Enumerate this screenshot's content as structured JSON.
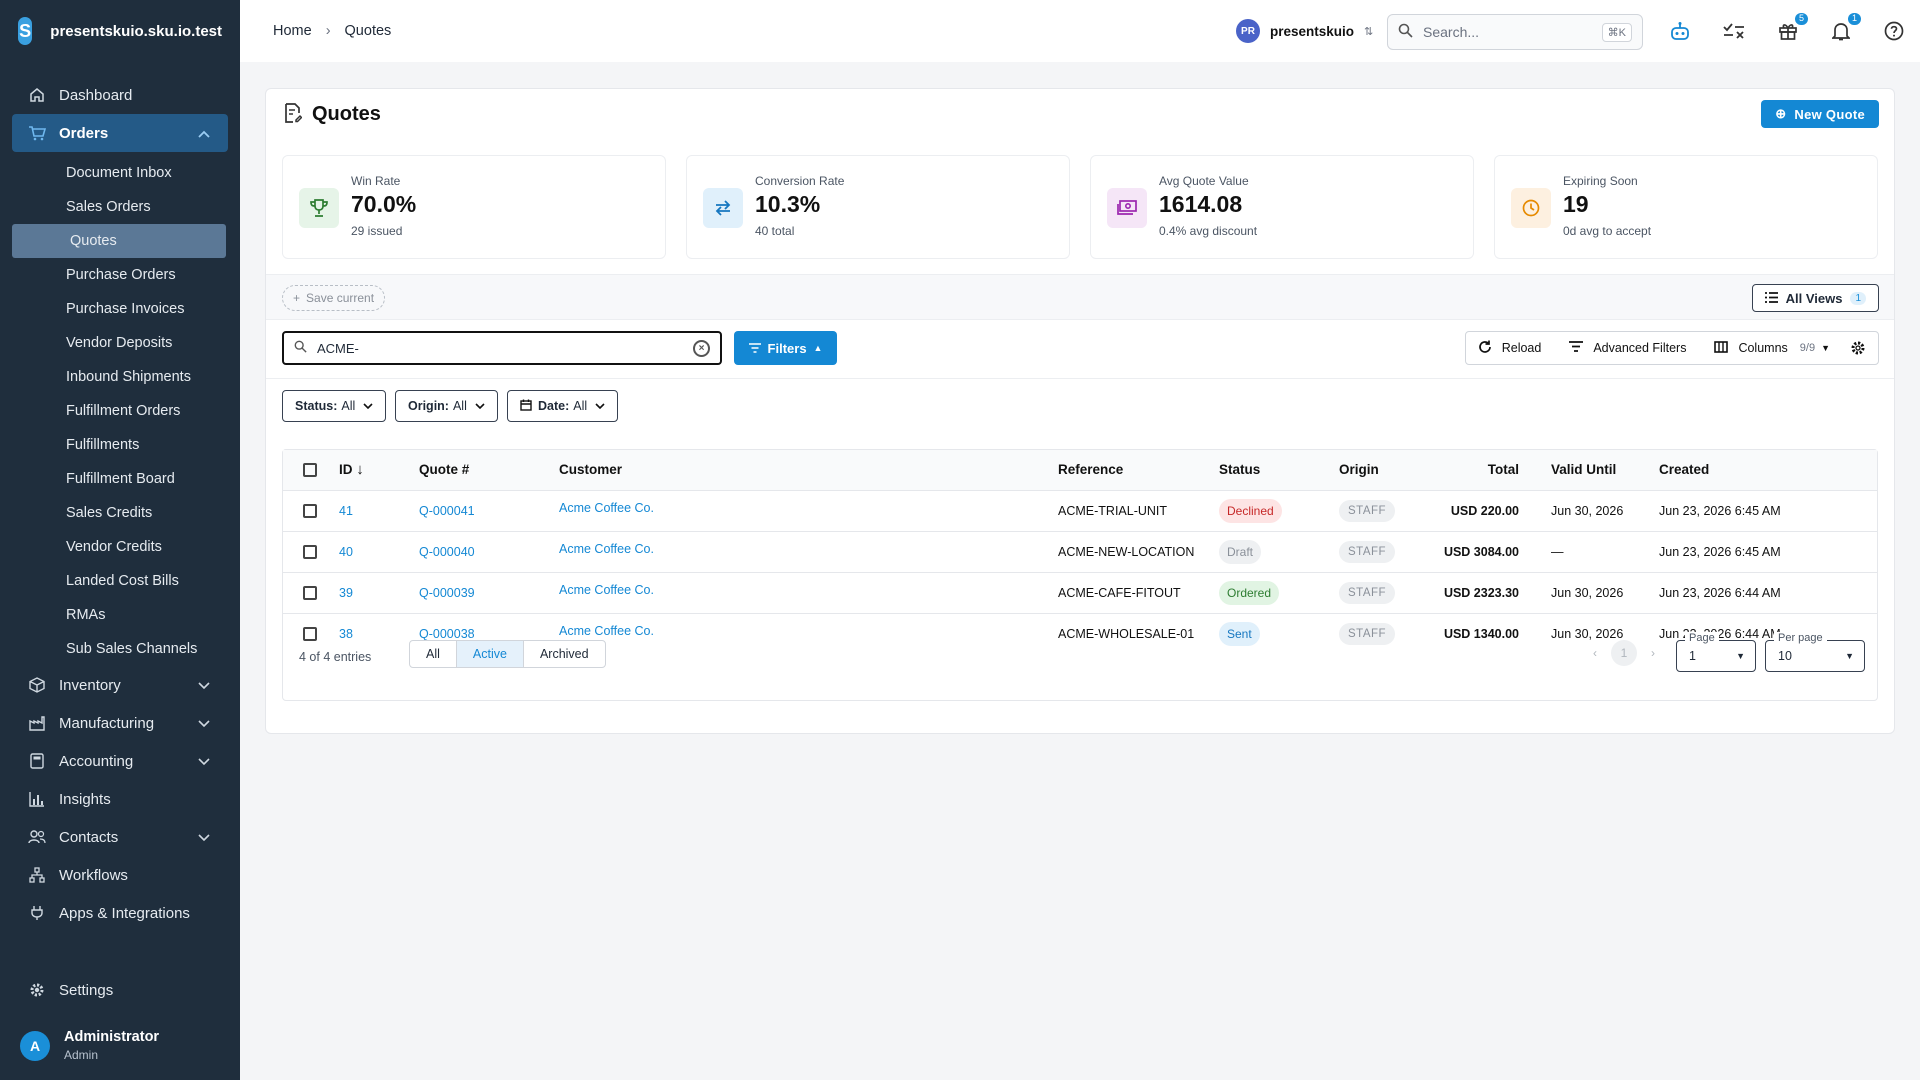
{
  "app": {
    "tenant_host": "presentskuio.sku.io.test",
    "logo_letter": "S"
  },
  "sidebar": {
    "items": [
      {
        "label": "Dashboard",
        "icon": "home-icon"
      },
      {
        "label": "Orders",
        "icon": "cart-icon",
        "expanded": true
      },
      {
        "label": "Inventory",
        "icon": "box-icon"
      },
      {
        "label": "Manufacturing",
        "icon": "factory-icon"
      },
      {
        "label": "Accounting",
        "icon": "calculator-icon"
      },
      {
        "label": "Insights",
        "icon": "bar-chart-icon"
      },
      {
        "label": "Contacts",
        "icon": "people-icon"
      },
      {
        "label": "Workflows",
        "icon": "workflow-icon"
      },
      {
        "label": "Apps & Integrations",
        "icon": "plug-icon"
      }
    ],
    "orders_sub": [
      "Document Inbox",
      "Sales Orders",
      "Quotes",
      "Purchase Orders",
      "Purchase Invoices",
      "Vendor Deposits",
      "Inbound Shipments",
      "Fulfillment Orders",
      "Fulfillments",
      "Fulfillment Board",
      "Sales Credits",
      "Vendor Credits",
      "Landed Cost Bills",
      "RMAs",
      "Sub Sales Channels"
    ],
    "settings_label": "Settings",
    "user": {
      "initial": "A",
      "name": "Administrator",
      "role": "Admin"
    }
  },
  "topbar": {
    "breadcrumb": [
      "Home",
      "Quotes"
    ],
    "tenant": {
      "initials": "PR",
      "name": "presentskuio"
    },
    "search": {
      "placeholder": "Search...",
      "shortcut": "⌘K"
    },
    "gift_badge": "5",
    "bell_badge": "1"
  },
  "page": {
    "title": "Quotes",
    "new_button": "New Quote",
    "stats": [
      {
        "label": "Win Rate",
        "value": "70.0%",
        "sub": "29 issued",
        "icon": "trophy-icon",
        "bg": "#e6f4e8",
        "fg": "#2e7d32"
      },
      {
        "label": "Conversion Rate",
        "value": "10.3%",
        "sub": "40 total",
        "icon": "swap-icon",
        "bg": "#e0f0fb",
        "fg": "#1677c0"
      },
      {
        "label": "Avg Quote Value",
        "value": "1614.08",
        "sub": "0.4% avg discount",
        "icon": "money-icon",
        "bg": "#f5e6f7",
        "fg": "#9c27b0"
      },
      {
        "label": "Expiring Soon",
        "value": "19",
        "sub": "0d avg to accept",
        "icon": "clock-icon",
        "bg": "#fdf0e0",
        "fg": "#e68a00"
      }
    ],
    "save_current": "Save current",
    "all_views": {
      "label": "All Views",
      "count": "1"
    },
    "search_value": "ACME-",
    "filters_button": "Filters",
    "tools": {
      "reload": "Reload",
      "advanced": "Advanced Filters",
      "columns": "Columns",
      "columns_count": "9/9"
    },
    "chips": [
      {
        "key": "Status:",
        "value": "All"
      },
      {
        "key": "Origin:",
        "value": "All"
      },
      {
        "key": "Date:",
        "value": "All"
      }
    ]
  },
  "table": {
    "headers": [
      "ID",
      "Quote #",
      "Customer",
      "Reference",
      "Status",
      "Origin",
      "Total",
      "Valid Until",
      "Created"
    ],
    "rows": [
      {
        "id": "41",
        "quote": "Q-000041",
        "customer": "Acme Coffee Co.",
        "reference": "ACME-TRIAL-UNIT",
        "status": "Declined",
        "origin": "STAFF",
        "total": "USD 220.00",
        "valid": "Jun 30, 2026",
        "created": "Jun 23, 2026 6:45 AM"
      },
      {
        "id": "40",
        "quote": "Q-000040",
        "customer": "Acme Coffee Co.",
        "reference": "ACME-NEW-LOCATION",
        "status": "Draft",
        "origin": "STAFF",
        "total": "USD 3084.00",
        "valid": "—",
        "created": "Jun 23, 2026 6:45 AM"
      },
      {
        "id": "39",
        "quote": "Q-000039",
        "customer": "Acme Coffee Co.",
        "reference": "ACME-CAFE-FITOUT",
        "status": "Ordered",
        "origin": "STAFF",
        "total": "USD 2323.30",
        "valid": "Jun 30, 2026",
        "created": "Jun 23, 2026 6:44 AM"
      },
      {
        "id": "38",
        "quote": "Q-000038",
        "customer": "Acme Coffee Co.",
        "reference": "ACME-WHOLESALE-01",
        "status": "Sent",
        "origin": "STAFF",
        "total": "USD 1340.00",
        "valid": "Jun 30, 2026",
        "created": "Jun 23, 2026 6:44 AM"
      }
    ]
  },
  "footer": {
    "entries": "4 of 4 entries",
    "segments": [
      "All",
      "Active",
      "Archived"
    ],
    "active_segment": "Active",
    "current_page": "1",
    "page_label": "Page",
    "page_value": "1",
    "per_page_label": "Per page",
    "per_page_value": "10"
  }
}
